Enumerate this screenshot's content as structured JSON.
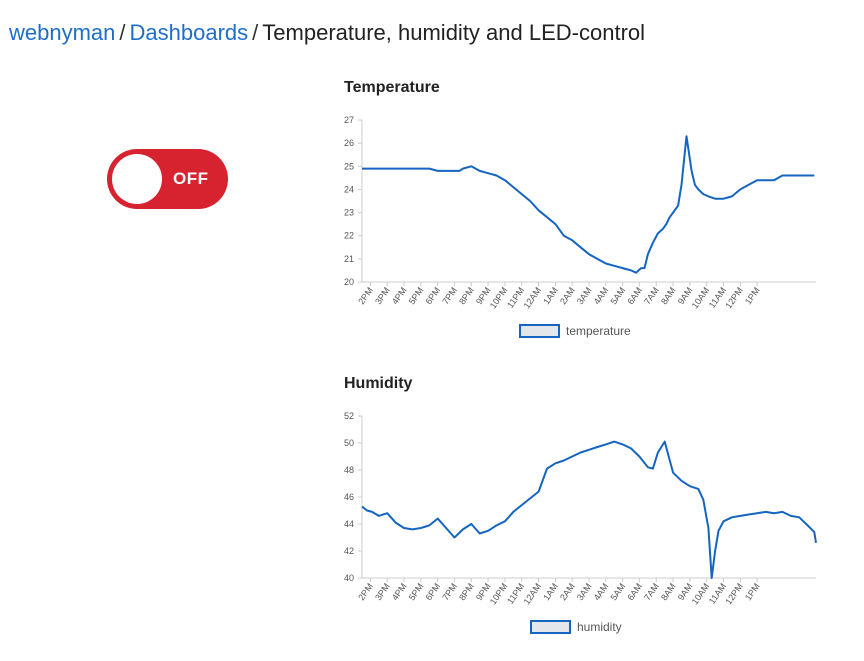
{
  "breadcrumb": {
    "user": "webnyman",
    "separator": "/",
    "section": "Dashboards",
    "current": "Temperature, humidity and LED-control"
  },
  "led_toggle": {
    "state_label": "OFF",
    "on": false,
    "color": "#d7222f"
  },
  "charts": {
    "temperature": {
      "title": "Temperature"
    },
    "humidity": {
      "title": "Humidity"
    }
  },
  "chart_data": [
    {
      "type": "line",
      "title": "Temperature",
      "x_tick_labels": [
        "2PM",
        "3PM",
        "4PM",
        "5PM",
        "6PM",
        "7PM",
        "8PM",
        "9PM",
        "10PM",
        "11PM",
        "12AM",
        "1AM",
        "2AM",
        "3AM",
        "4AM",
        "5AM",
        "6AM",
        "7AM",
        "8AM",
        "9AM",
        "10AM",
        "11AM",
        "12PM",
        "1PM"
      ],
      "y_ticks": [
        20,
        21,
        22,
        23,
        24,
        25,
        26,
        27
      ],
      "ylim": [
        20,
        27
      ],
      "grid": false,
      "legend_position": "bottom-center",
      "series": [
        {
          "name": "temperature",
          "color": "#1565c0",
          "x_hours": [
            0,
            1,
            2,
            3,
            4,
            4.5,
            5,
            5.8,
            6,
            6.5,
            7,
            7.5,
            8,
            8.5,
            9,
            9.5,
            10,
            10.5,
            11,
            11.5,
            12,
            12.5,
            13,
            13.5,
            14,
            14.5,
            15,
            15.5,
            16,
            16.3,
            16.6,
            16.8,
            17,
            17.3,
            17.6,
            17.9,
            18.1,
            18.3,
            18.5,
            18.8,
            19,
            19.3,
            19.6,
            19.8,
            20,
            20.3,
            20.6,
            21,
            21.5,
            22,
            22.5,
            23,
            23.5,
            24,
            24.5,
            25,
            26,
            26.9
          ],
          "values": [
            24.9,
            24.9,
            24.9,
            24.9,
            24.9,
            24.8,
            24.8,
            24.8,
            24.9,
            25.0,
            24.8,
            24.7,
            24.6,
            24.4,
            24.1,
            23.8,
            23.5,
            23.1,
            22.8,
            22.5,
            22.0,
            21.8,
            21.5,
            21.2,
            21.0,
            20.8,
            20.7,
            20.6,
            20.5,
            20.4,
            20.6,
            20.6,
            21.2,
            21.7,
            22.1,
            22.3,
            22.5,
            22.8,
            23.0,
            23.3,
            24.2,
            26.3,
            24.8,
            24.2,
            24.0,
            23.8,
            23.7,
            23.6,
            23.6,
            23.7,
            24.0,
            24.2,
            24.4,
            24.4,
            24.4,
            24.6,
            24.6,
            24.6
          ]
        }
      ]
    },
    {
      "type": "line",
      "title": "Humidity",
      "x_tick_labels": [
        "2PM",
        "3PM",
        "4PM",
        "5PM",
        "6PM",
        "7PM",
        "8PM",
        "9PM",
        "10PM",
        "11PM",
        "12AM",
        "1AM",
        "2AM",
        "3AM",
        "4AM",
        "5AM",
        "6AM",
        "7AM",
        "8AM",
        "9AM",
        "10AM",
        "11AM",
        "12PM",
        "1PM"
      ],
      "y_ticks": [
        40,
        42,
        44,
        46,
        48,
        50,
        52
      ],
      "ylim": [
        40,
        52
      ],
      "grid": false,
      "legend_position": "bottom-center",
      "series": [
        {
          "name": "humidity",
          "color": "#1565c0",
          "x_hours": [
            0,
            0.3,
            0.6,
            1,
            1.5,
            2,
            2.5,
            3,
            3.5,
            4,
            4.5,
            5,
            5.5,
            6,
            6.5,
            7,
            7.5,
            8,
            8.5,
            9,
            9.5,
            10,
            10.5,
            11,
            11.5,
            12,
            12.5,
            13,
            13.5,
            14,
            14.5,
            15,
            15.5,
            16,
            16.5,
            17,
            17.3,
            17.6,
            18,
            18.5,
            19,
            19.5,
            20,
            20.3,
            20.6,
            20.8,
            21,
            21.2,
            21.5,
            22,
            22.5,
            23,
            23.5,
            24,
            24.5,
            25,
            25.5,
            26,
            26.5,
            26.9,
            27
          ],
          "values": [
            45.3,
            45.0,
            44.9,
            44.6,
            44.8,
            44.1,
            43.7,
            43.6,
            43.7,
            43.9,
            44.4,
            43.7,
            43.0,
            43.6,
            44.0,
            43.3,
            43.5,
            43.9,
            44.2,
            44.9,
            45.4,
            45.9,
            46.4,
            48.1,
            48.5,
            48.7,
            49.0,
            49.3,
            49.5,
            49.7,
            49.9,
            50.1,
            49.9,
            49.6,
            49.0,
            48.2,
            48.1,
            49.3,
            50.1,
            47.8,
            47.2,
            46.8,
            46.6,
            45.8,
            43.7,
            40.0,
            42.0,
            43.5,
            44.2,
            44.5,
            44.6,
            44.7,
            44.8,
            44.9,
            44.8,
            44.9,
            44.6,
            44.5,
            43.9,
            43.4,
            42.6
          ]
        }
      ]
    }
  ]
}
